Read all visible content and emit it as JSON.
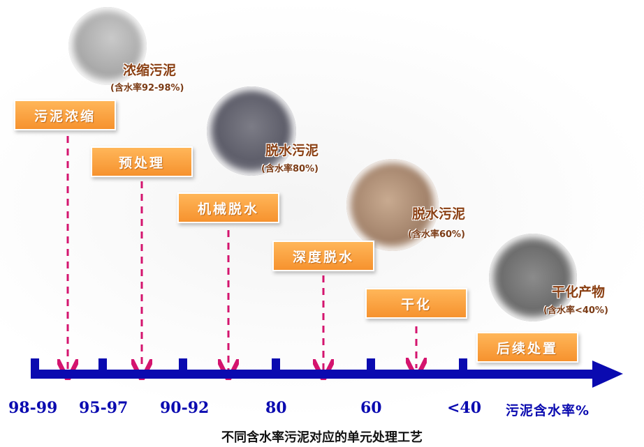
{
  "steps": [
    {
      "label": "污泥浓缩"
    },
    {
      "label": "预处理"
    },
    {
      "label": "机械脱水"
    },
    {
      "label": "深度脱水"
    },
    {
      "label": "干化"
    },
    {
      "label": "后续处置"
    }
  ],
  "photos": [
    {
      "title": "浓缩污泥",
      "moisture": "(含水率92-98%)"
    },
    {
      "title": "脱水污泥",
      "moisture": "(含水率80%)"
    },
    {
      "title": "脱水污泥",
      "moisture": "(含水率60%)"
    },
    {
      "title": "干化产物",
      "moisture": "(含水率<40%)"
    }
  ],
  "axis": {
    "ticks": [
      "98-99",
      "95-97",
      "90-92",
      "80",
      "60",
      "<40"
    ],
    "title": "污泥含水率%"
  },
  "caption": "不同含水率污泥对应的单元处理工艺",
  "colors": {
    "step_fill": "#f6922e",
    "axis": "#0a0ab0",
    "dashed_arrow": "#d4146e",
    "photo_text": "#8a3f12"
  }
}
